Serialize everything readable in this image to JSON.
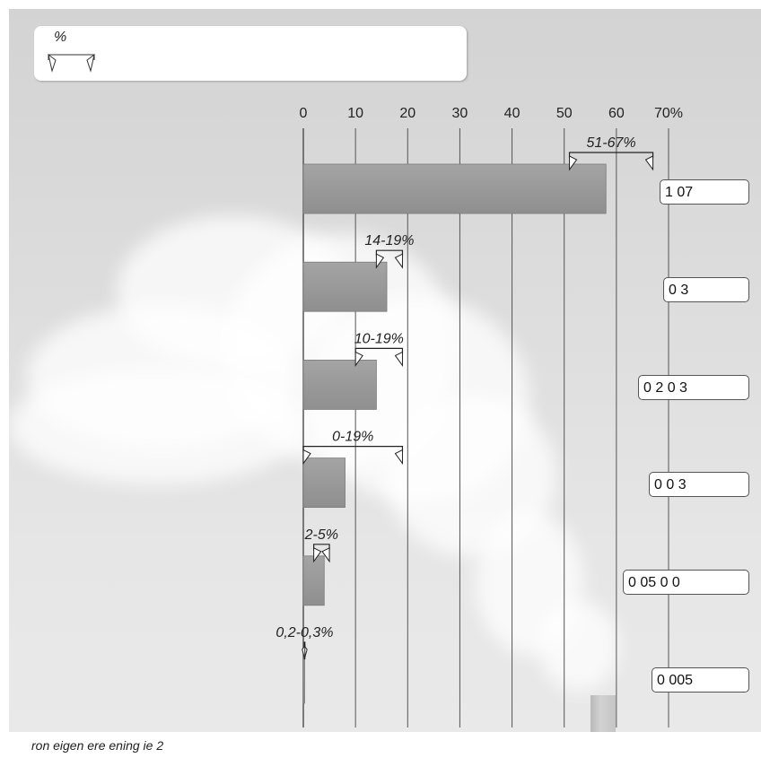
{
  "legend": {
    "unit": "%"
  },
  "source_text": "ron  eigen  ere  ening  ie    2",
  "chart_data": {
    "type": "bar",
    "orientation": "horizontal",
    "categories": [
      "1 07",
      "0 3",
      "0 2 0 3",
      "0 0 3",
      "0 05 0 0",
      "0 005"
    ],
    "values": [
      58,
      16,
      14,
      8,
      4,
      0.25
    ],
    "ranges": [
      {
        "label": "51-67%",
        "low": 51,
        "high": 67
      },
      {
        "label": "14-19%",
        "low": 14,
        "high": 19
      },
      {
        "label": "10-19%",
        "low": 10,
        "high": 19
      },
      {
        "label": "0-19%",
        "low": 0,
        "high": 19
      },
      {
        "label": "2-5%",
        "low": 2,
        "high": 5
      },
      {
        "label": "0,2-0,3%",
        "low": 0.2,
        "high": 0.3
      }
    ],
    "x_ticks": [
      "0",
      "10",
      "20",
      "30",
      "40",
      "50",
      "60",
      "70%"
    ],
    "xlim": [
      0,
      70
    ],
    "grid": true,
    "colors": {
      "bar": "#9a9a9a",
      "bar_edge": "#7a7a7a",
      "grid": "#555555"
    }
  }
}
